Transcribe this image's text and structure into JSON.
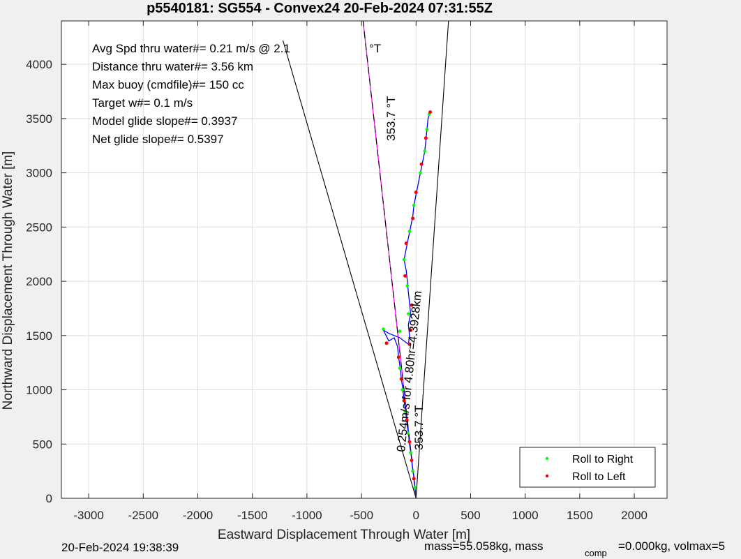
{
  "chart_data": {
    "type": "line",
    "title": "p5540181: SG554 - Convex24 20-Feb-2024 07:31:55Z",
    "xlabel": "Eastward Displacement Through Water [m]",
    "ylabel": "Northward Displacement Through Water [m]",
    "xlim": [
      -3250,
      2300
    ],
    "ylim": [
      0,
      4400
    ],
    "x_ticks": [
      -3000,
      -2500,
      -2000,
      -1500,
      -1000,
      -500,
      0,
      500,
      1000,
      1500,
      2000
    ],
    "y_ticks": [
      0,
      500,
      1000,
      1500,
      2000,
      2500,
      3000,
      3500,
      4000
    ],
    "grid": true,
    "legend": {
      "placement": "bottom-right",
      "entries": [
        {
          "label": "Roll to Right",
          "color": "#00ff00"
        },
        {
          "label": "Roll to Left",
          "color": "#ff0000"
        }
      ]
    },
    "info_lines": [
      "Avg Spd thru water#=  0.21 m/s @   2.1",
      "Distance thru water#=  3.56 km",
      "Max buoy (cmdfile)#= 150 cc",
      "Target w#= 0.1 m/s",
      "Model glide slope#= 0.3937",
      "Net glide slope#= 0.5397"
    ],
    "info_degT": "°T",
    "annotations": {
      "heading_top": "353.7 °T",
      "heading_bottom": "353.7 °T",
      "segment_label": "0.254m/s for 4.80hr=4.3928km"
    },
    "track_points": [
      [
        0,
        0
      ],
      [
        -10,
        100
      ],
      [
        -20,
        200
      ],
      [
        -35,
        300
      ],
      [
        -45,
        400
      ],
      [
        -60,
        500
      ],
      [
        -70,
        600
      ],
      [
        -85,
        700
      ],
      [
        -95,
        800
      ],
      [
        -110,
        900
      ],
      [
        -120,
        1000
      ],
      [
        -135,
        1100
      ],
      [
        -145,
        1200
      ],
      [
        -160,
        1300
      ],
      [
        -170,
        1400
      ],
      [
        -200,
        1480
      ],
      [
        -250,
        1450
      ],
      [
        -300,
        1550
      ],
      [
        -250,
        1520
      ],
      [
        -150,
        1480
      ],
      [
        -70,
        1420
      ],
      [
        -60,
        1500
      ],
      [
        -70,
        1600
      ],
      [
        -50,
        1700
      ],
      [
        -60,
        1800
      ],
      [
        -70,
        1900
      ],
      [
        -80,
        2000
      ],
      [
        -90,
        2100
      ],
      [
        -110,
        2200
      ],
      [
        -90,
        2300
      ],
      [
        -70,
        2400
      ],
      [
        -50,
        2500
      ],
      [
        -30,
        2600
      ],
      [
        -20,
        2700
      ],
      [
        0,
        2800
      ],
      [
        20,
        2900
      ],
      [
        40,
        3000
      ],
      [
        60,
        3100
      ],
      [
        80,
        3200
      ],
      [
        90,
        3300
      ],
      [
        100,
        3400
      ],
      [
        110,
        3500
      ],
      [
        130,
        3560
      ]
    ],
    "roll_right_points": [
      [
        -10,
        100
      ],
      [
        -30,
        250
      ],
      [
        -50,
        420
      ],
      [
        -75,
        600
      ],
      [
        -100,
        800
      ],
      [
        -125,
        1000
      ],
      [
        -150,
        1200
      ],
      [
        -300,
        1560
      ],
      [
        -150,
        1540
      ],
      [
        -70,
        1700
      ],
      [
        -80,
        1960
      ],
      [
        -110,
        2200
      ],
      [
        -60,
        2460
      ],
      [
        -20,
        2700
      ],
      [
        40,
        3000
      ],
      [
        80,
        3200
      ],
      [
        100,
        3400
      ],
      [
        120,
        3540
      ]
    ],
    "roll_left_points": [
      [
        -20,
        180
      ],
      [
        -40,
        350
      ],
      [
        -60,
        520
      ],
      [
        -85,
        720
      ],
      [
        -110,
        900
      ],
      [
        -135,
        1100
      ],
      [
        -160,
        1300
      ],
      [
        -270,
        1430
      ],
      [
        -60,
        1420
      ],
      [
        -50,
        1550
      ],
      [
        -40,
        1780
      ],
      [
        -100,
        2050
      ],
      [
        -90,
        2350
      ],
      [
        -30,
        2580
      ],
      [
        0,
        2820
      ],
      [
        50,
        3080
      ],
      [
        90,
        3320
      ],
      [
        130,
        3560
      ]
    ],
    "glide_line_dashed": [
      [
        0,
        0
      ],
      [
        -490,
        4440
      ]
    ],
    "glide_line_magenta": [
      [
        0,
        0
      ],
      [
        -490,
        4440
      ]
    ],
    "fan_lines": [
      [
        [
          0,
          0
        ],
        [
          -1220,
          4220
        ]
      ],
      [
        [
          0,
          0
        ],
        [
          300,
          4440
        ]
      ]
    ]
  },
  "footer": {
    "date": "20-Feb-2024 19:38:39",
    "mass_text": "mass=55.058kg, mass",
    "comp_sub": "comp",
    "comp_text": "=0.000kg, volmax=5"
  },
  "colors": {
    "track": "#0000ff",
    "glide_dashed": "#000000",
    "glide_magenta": "#ff00ff",
    "fan": "#000000",
    "roll_right": "#00ff00",
    "roll_left": "#ff0000",
    "grid": "#dedede",
    "axes_bg": "#ffffff",
    "figure_bg": "#f0f0f0"
  }
}
